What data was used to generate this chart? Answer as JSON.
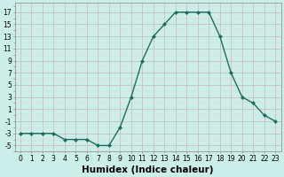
{
  "x": [
    0,
    1,
    2,
    3,
    4,
    5,
    6,
    7,
    8,
    9,
    10,
    11,
    12,
    13,
    14,
    15,
    16,
    17,
    18,
    19,
    20,
    21,
    22,
    23
  ],
  "y": [
    -3,
    -3,
    -3,
    -3,
    -4,
    -4,
    -4,
    -5,
    -5,
    -2,
    3,
    9,
    13,
    15,
    17,
    17,
    17,
    17,
    13,
    7,
    3,
    2,
    0,
    -1
  ],
  "line_color": "#1e6e5e",
  "marker": "D",
  "marker_size": 2.0,
  "bg_color": "#cceee8",
  "grid_color_major": "#c8b8b8",
  "grid_color_minor": "#e0d0d0",
  "xlabel": "Humidex (Indice chaleur)",
  "xlabel_fontsize": 7.5,
  "ylabel_ticks": [
    -5,
    -3,
    -1,
    1,
    3,
    5,
    7,
    9,
    11,
    13,
    15,
    17
  ],
  "ylim": [
    -6.0,
    18.5
  ],
  "xlim": [
    -0.5,
    23.5
  ],
  "xticks": [
    0,
    1,
    2,
    3,
    4,
    5,
    6,
    7,
    8,
    9,
    10,
    11,
    12,
    13,
    14,
    15,
    16,
    17,
    18,
    19,
    20,
    21,
    22,
    23
  ],
  "tick_fontsize": 5.5,
  "linewidth": 1.0
}
